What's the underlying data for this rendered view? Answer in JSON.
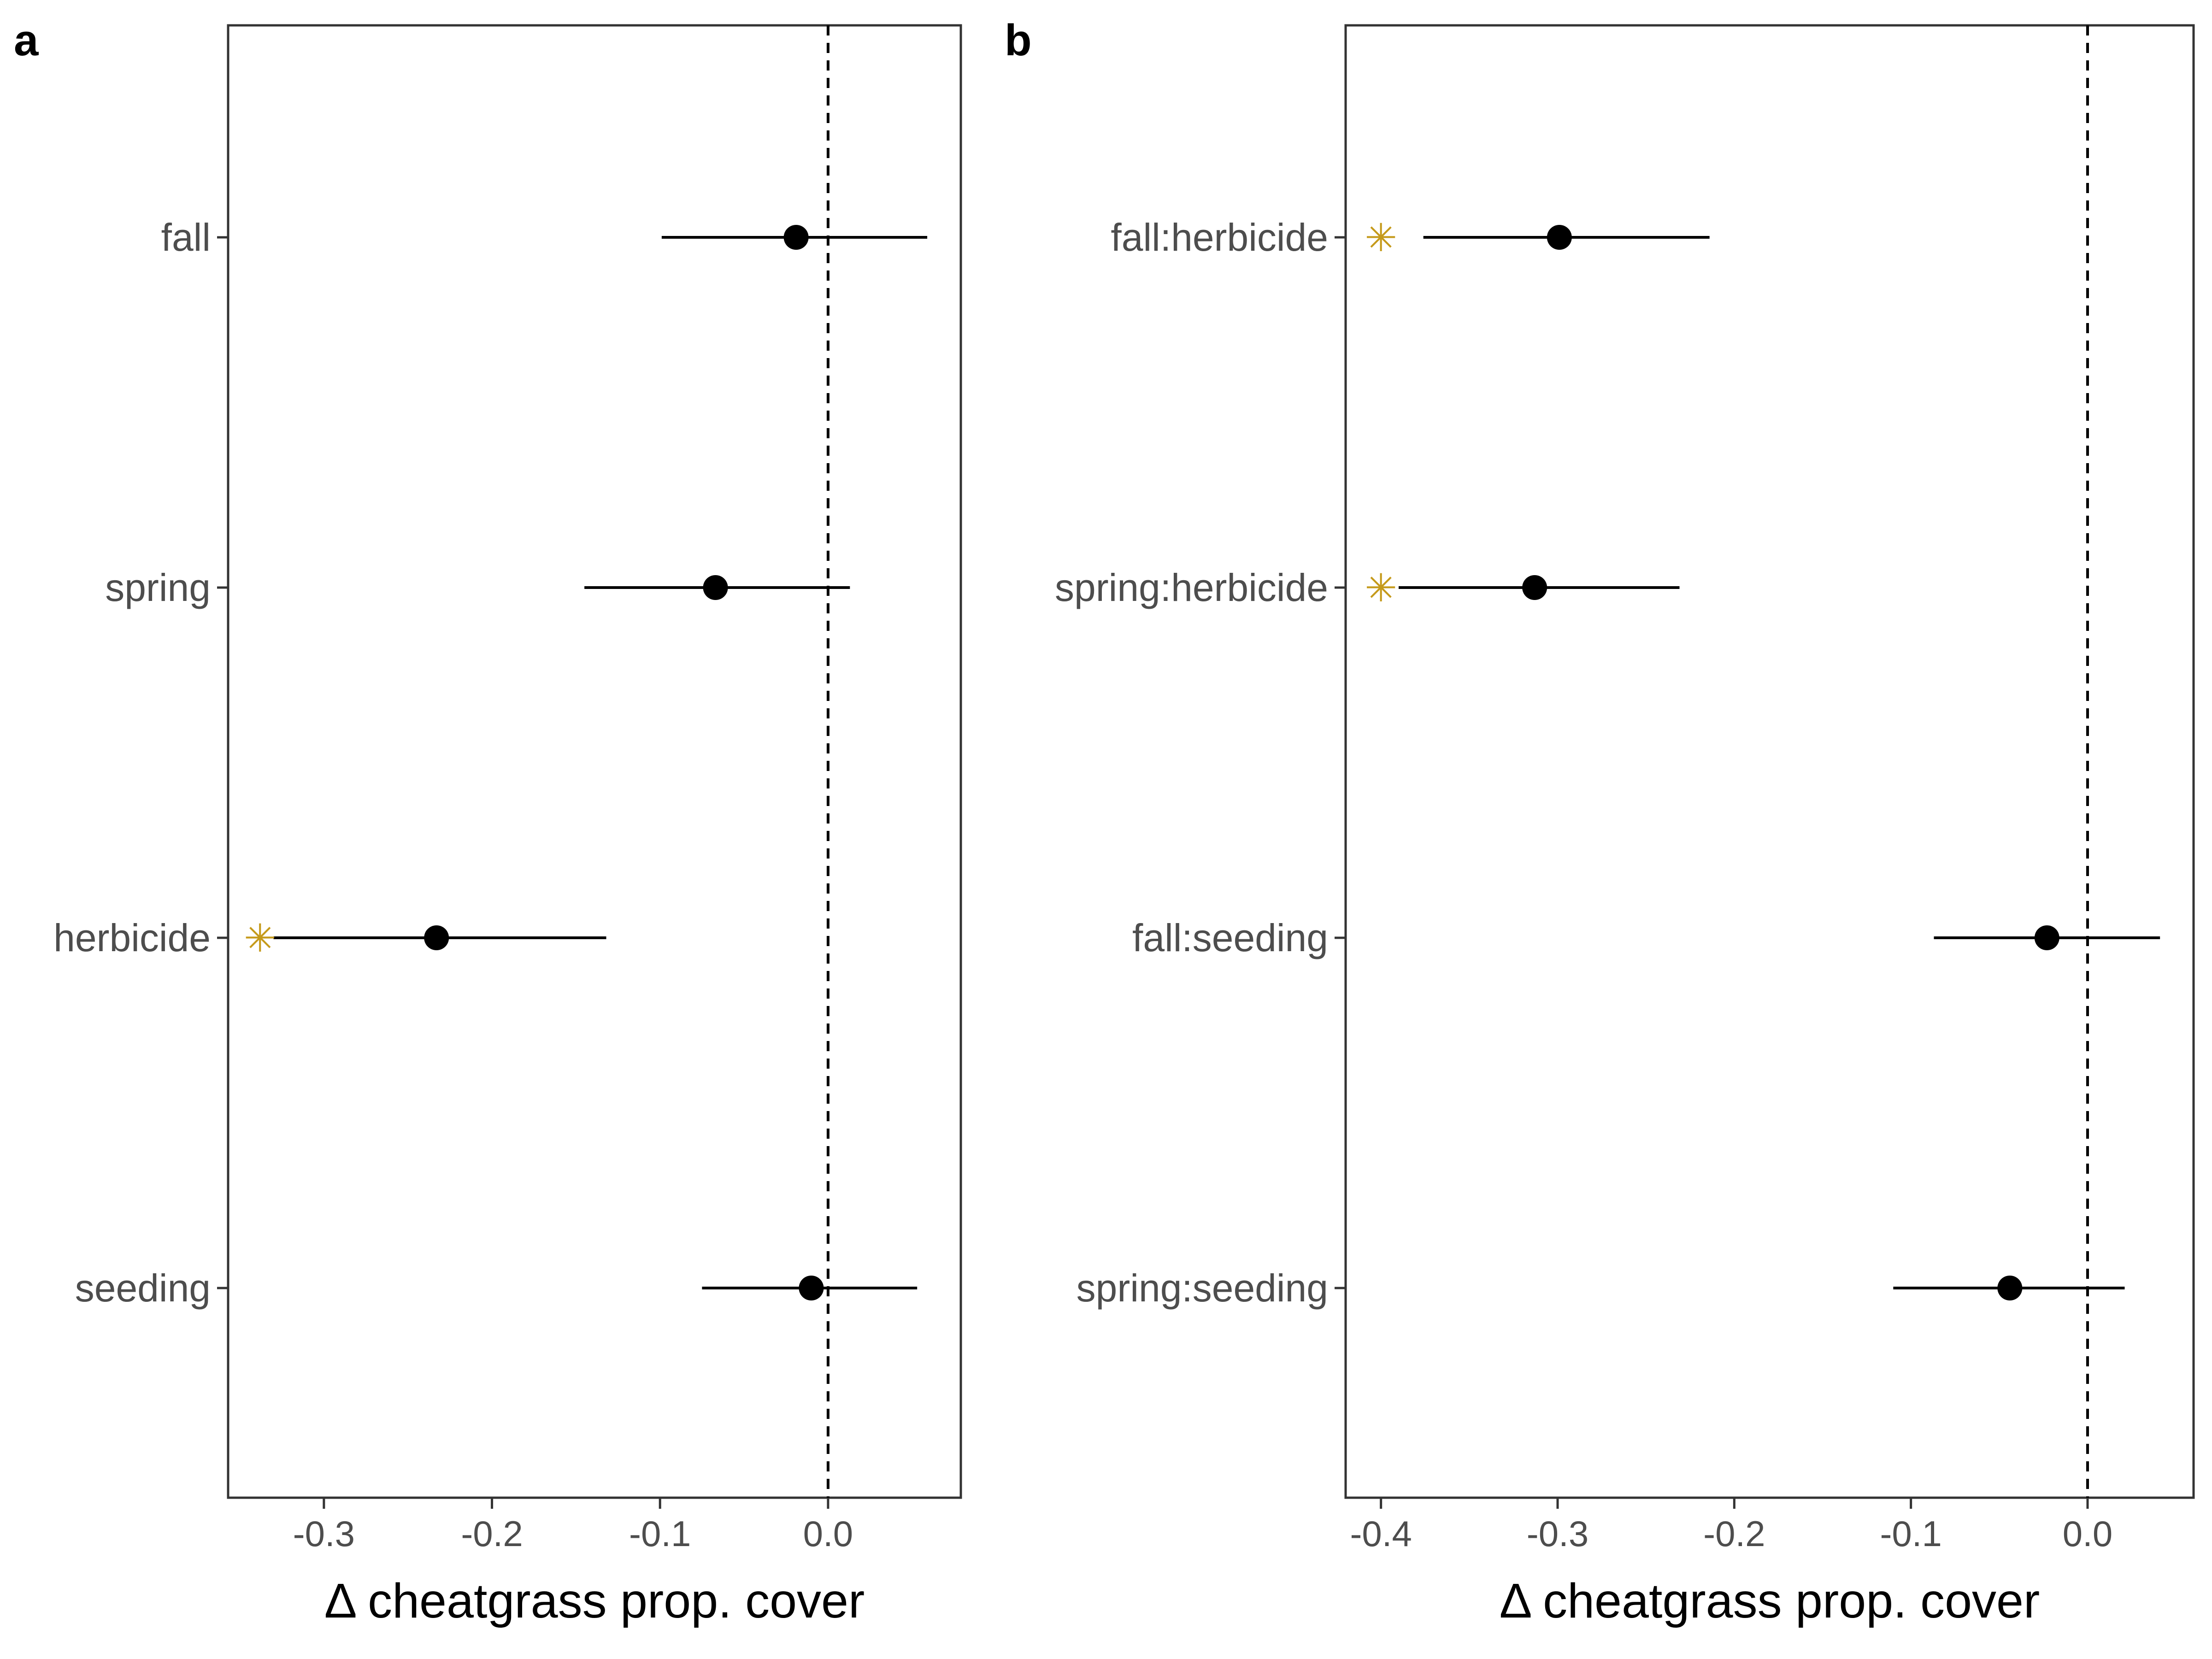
{
  "chart_data": [
    {
      "panel": "a",
      "type": "scatter",
      "subtype": "coefficient-plot-with-intervals",
      "xlabel": "Δ cheatgrass prop. cover",
      "ylabel": "",
      "xlim": [
        -0.357,
        0.079
      ],
      "xticks": [
        -0.3,
        -0.2,
        -0.1,
        0.0
      ],
      "xtick_labels": [
        "-0.3",
        "-0.2",
        "-0.1",
        "0.0"
      ],
      "reference_line": {
        "x": 0.0,
        "style": "dashed"
      },
      "grid": false,
      "point_color": "#000000",
      "marker_color": "#c59a1b",
      "categories": [
        "fall",
        "spring",
        "herbicide",
        "seeding"
      ],
      "estimates": [
        -0.019,
        -0.067,
        -0.233,
        -0.01
      ],
      "lower": [
        -0.099,
        -0.145,
        -0.33,
        -0.075
      ],
      "upper": [
        0.059,
        0.013,
        -0.132,
        0.053
      ],
      "significant": [
        false,
        false,
        true,
        false
      ],
      "significance_symbol": "✳",
      "significance_x": -0.338
    },
    {
      "panel": "b",
      "type": "scatter",
      "subtype": "coefficient-plot-with-intervals",
      "xlabel": "Δ cheatgrass prop. cover",
      "ylabel": "",
      "xlim": [
        -0.42,
        0.06
      ],
      "xticks": [
        -0.4,
        -0.3,
        -0.2,
        -0.1,
        0.0
      ],
      "xtick_labels": [
        "-0.4",
        "-0.3",
        "-0.2",
        "-0.1",
        "0.0"
      ],
      "reference_line": {
        "x": 0.0,
        "style": "dashed"
      },
      "grid": false,
      "point_color": "#000000",
      "marker_color": "#c59a1b",
      "categories": [
        "fall:herbicide",
        "spring:herbicide",
        "fall:seeding",
        "spring:seeding"
      ],
      "estimates": [
        -0.299,
        -0.313,
        -0.023,
        -0.044
      ],
      "lower": [
        -0.376,
        -0.39,
        -0.087,
        -0.11
      ],
      "upper": [
        -0.214,
        -0.231,
        0.041,
        0.021
      ],
      "significant": [
        true,
        true,
        false,
        false
      ],
      "significance_symbol": "✳",
      "significance_x": -0.4
    }
  ]
}
